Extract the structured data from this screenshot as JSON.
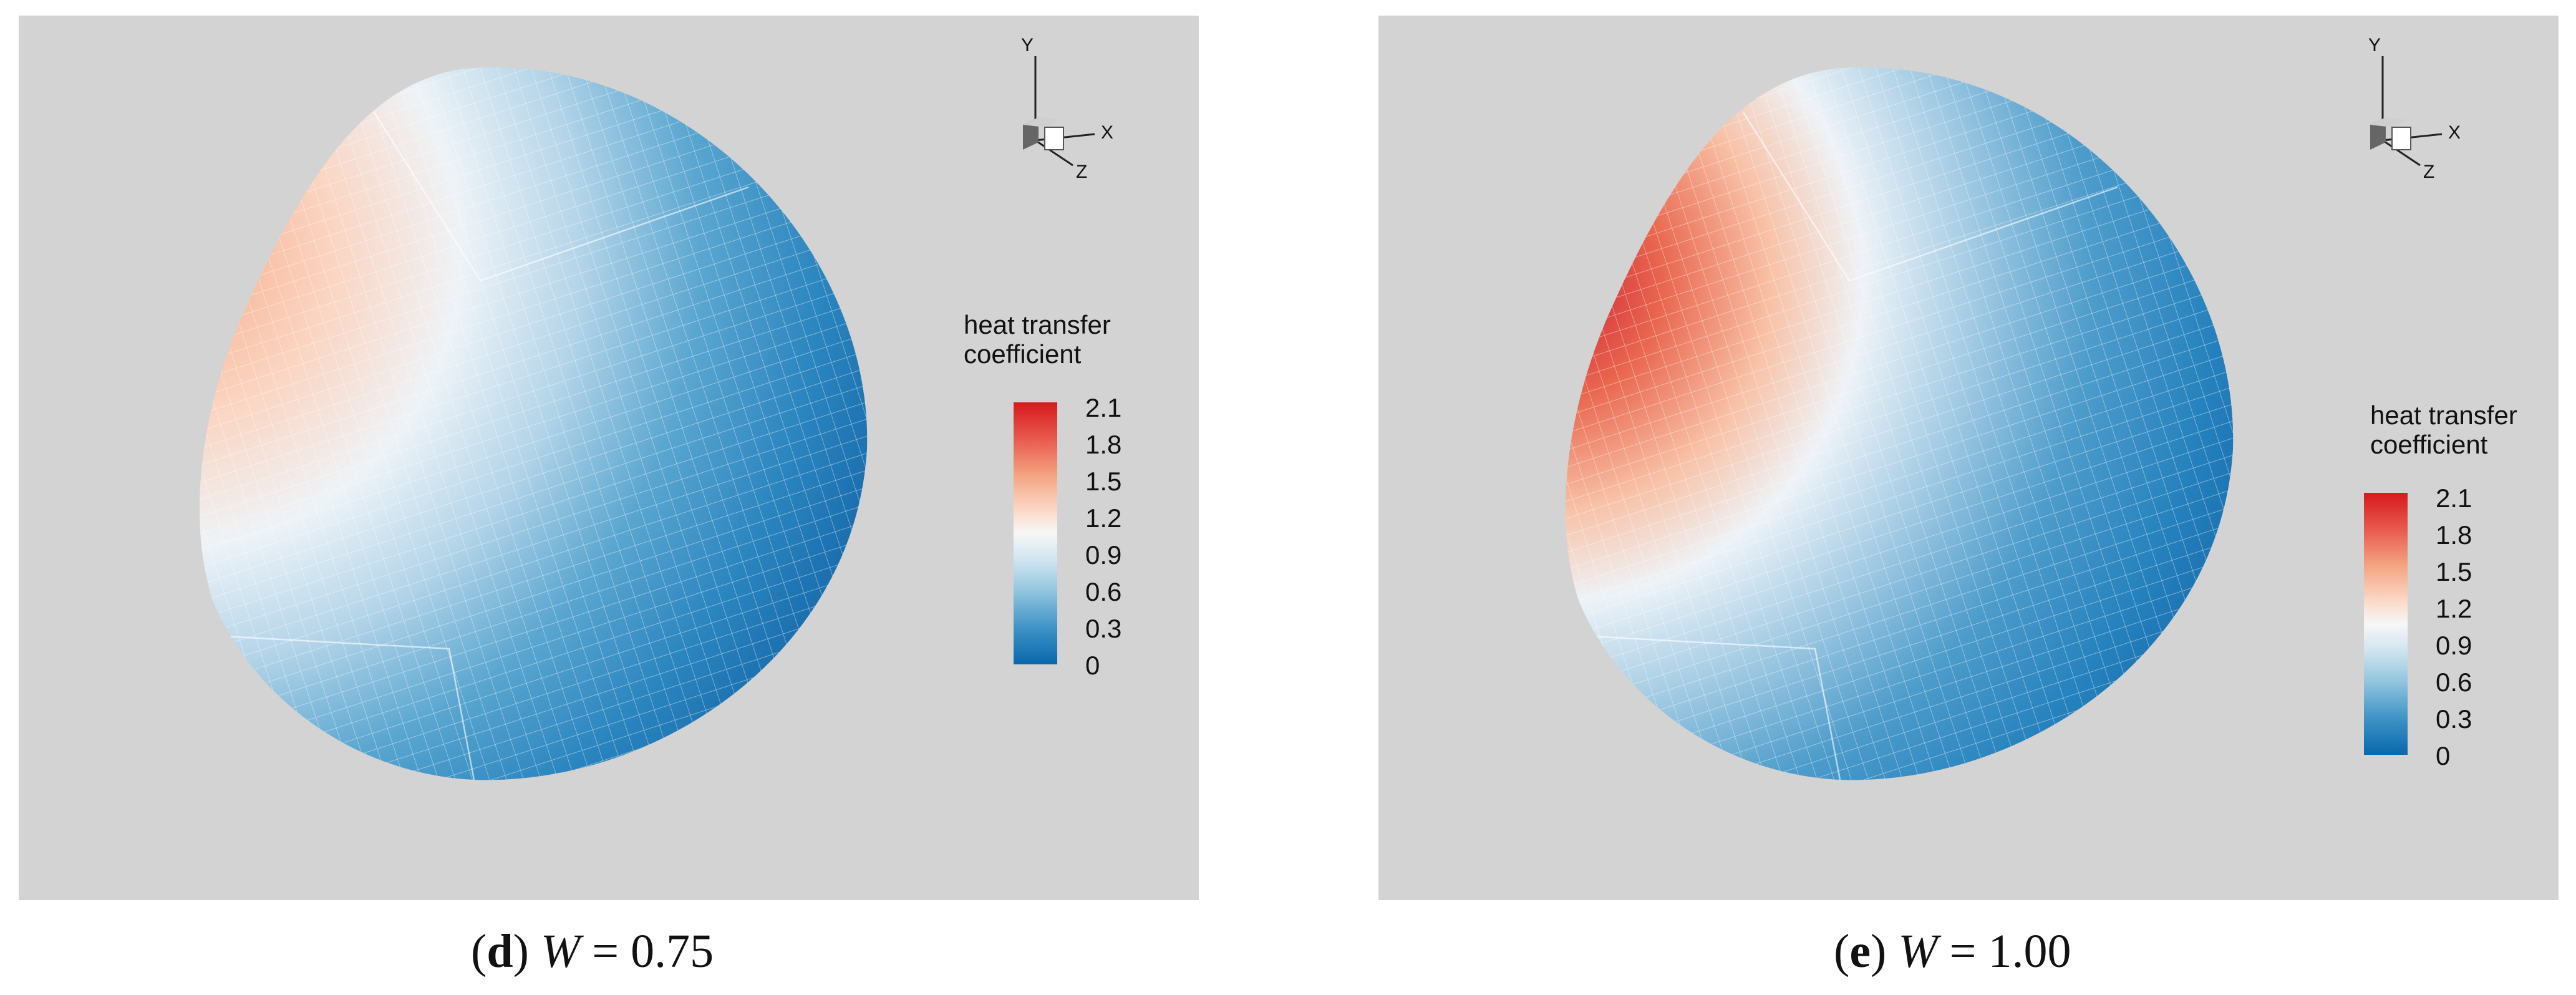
{
  "panels": [
    {
      "id": "d",
      "caption": {
        "open": "(",
        "letter": "d",
        "close": ")",
        "var": "W",
        "eq": " = ",
        "value": "0.75"
      },
      "legend": {
        "title_line1": "heat transfer",
        "title_line2": "coefficient",
        "ticks": [
          "2.1",
          "1.8",
          "1.5",
          "1.2",
          "0.9",
          "0.6",
          "0.3",
          "0"
        ]
      },
      "axes": {
        "y": "Y",
        "x": "X",
        "z": "Z"
      }
    },
    {
      "id": "e",
      "caption": {
        "open": "(",
        "letter": "e",
        "close": ")",
        "var": "W",
        "eq": " = ",
        "value": "1.00"
      },
      "legend": {
        "title_line1": "heat transfer",
        "title_line2": "coefficient",
        "ticks": [
          "2.1",
          "1.8",
          "1.5",
          "1.2",
          "0.9",
          "0.6",
          "0.3",
          "0"
        ]
      },
      "axes": {
        "y": "Y",
        "x": "X",
        "z": "Z"
      }
    }
  ],
  "colors": {
    "background": "#d3d3d3",
    "scale_high": "#d7191c",
    "scale_mid": "#f7f7f7",
    "scale_low": "#0868ac"
  }
}
